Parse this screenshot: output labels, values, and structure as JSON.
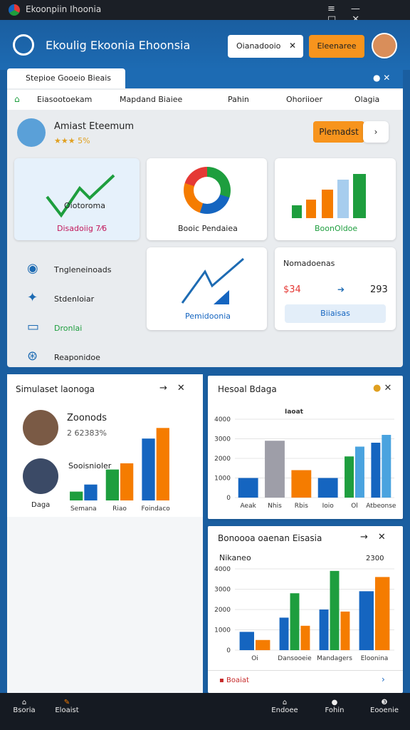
{
  "window": {
    "title": "Ekoonpiin Ihoonia"
  },
  "header": {
    "title": "Ekoulig Ekoonia Ehoonsia",
    "search": "Oianadooio",
    "button": "Eleenaree"
  },
  "panel": {
    "tab": "Stepioe Gooeio Bieais",
    "nav": [
      "Eiasootoekam",
      "Mapdand Biaiee",
      "Pahin",
      "Ohoriioer",
      "Olagia"
    ],
    "profile": {
      "name": "Amiast Eteemum",
      "rating": "★★★ 5%",
      "button": "Plemadst"
    },
    "cards": [
      {
        "title": "Oiotoroma",
        "caption": "Disadoiig 7⁄6"
      },
      {
        "caption": "Booic Pendaiea"
      },
      {
        "caption": "BoonOldoe"
      },
      {
        "caption": "Pemidoonia"
      },
      {
        "title": "Nomadoenas",
        "left": "$34",
        "right": "293",
        "button": "Biiaisas"
      }
    ],
    "list": [
      "Tngleneinoads",
      "Stdenloiar",
      "Dronlai",
      "Reaponidoe"
    ]
  },
  "left_panel": {
    "title": "Simulaset laonoga",
    "person1": "Zoonods",
    "stat": "2 62383%",
    "person2": "Sooisnioler",
    "caption": "Daga"
  },
  "right_bottom": {
    "footer": "Boaiat"
  },
  "bottom_nav": [
    "Bsoria",
    "Eloaist",
    "Endoee",
    "Fohin",
    "Eooenie"
  ],
  "chart_data": [
    {
      "type": "bar",
      "categories": [
        "Semana",
        "Riao",
        "Foindaco"
      ],
      "series": [
        {
          "color": "#1e9e3e",
          "values": [
            10,
            35,
            null
          ]
        },
        {
          "color": "#1565c0",
          "values": [
            18,
            null,
            70
          ]
        },
        {
          "color": "#f57c00",
          "values": [
            null,
            42,
            82
          ]
        }
      ],
      "ylim": [
        0,
        100
      ]
    },
    {
      "type": "bar",
      "title": "Hesoal Bdaga",
      "annotation": "Iaoat",
      "categories": [
        "Aeak",
        "Nhis",
        "Rbis",
        "Ioio",
        "Ol",
        "Atbeonse"
      ],
      "series": [
        {
          "colors": [
            "#1565c0",
            "#9e9ea8",
            "#f57c00",
            "#1565c0",
            "#1e9e3e",
            "#1565c0"
          ],
          "values": [
            1000,
            2900,
            1400,
            1000,
            2100,
            2800
          ]
        },
        {
          "color": "#4aa3df",
          "values": [
            null,
            null,
            null,
            null,
            2600,
            3200
          ]
        }
      ],
      "ylim": [
        0,
        4000
      ],
      "yticks": [
        0,
        1000,
        2000,
        3000,
        4000
      ],
      "grid": true
    },
    {
      "type": "bar",
      "title": "Bonoooa oaenan Eisasia",
      "subtitle": "Nikaneo",
      "annotation": "2300",
      "categories": [
        "Oi",
        "Dansooeie",
        "Mandagers",
        "Eloonina"
      ],
      "series": [
        {
          "color": "#1565c0",
          "values": [
            900,
            1600,
            2000,
            2900
          ]
        },
        {
          "color": "#1e9e3e",
          "values": [
            null,
            2800,
            3900,
            null
          ]
        },
        {
          "color": "#f57c00",
          "values": [
            500,
            1200,
            1900,
            3600
          ]
        }
      ],
      "ylim": [
        0,
        4000
      ],
      "yticks": [
        0,
        1000,
        2000,
        3000,
        4000
      ],
      "grid": true
    }
  ]
}
